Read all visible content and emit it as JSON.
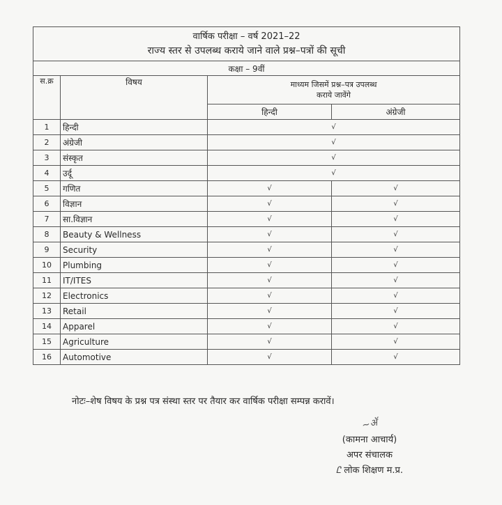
{
  "document": {
    "title_line1": "वार्षिक परीक्षा – वर्ष 2021–22",
    "title_line2": "राज्य स्तर से उपलब्ध कराये जाने वाले प्रश्न–पत्रों की सूची",
    "class_label": "कक्षा – 9वीं",
    "headers": {
      "sno": "स.क्र",
      "subject": "विषय",
      "medium": "माध्यम जिसमें प्रश्न–पत्र उपलब्ध कराये जावेंगे",
      "hindi": "हिन्दी",
      "english": "अंग्रेजी"
    },
    "tick": "√",
    "rows": [
      {
        "sno": "1",
        "subject": "हिन्दी",
        "merged": true
      },
      {
        "sno": "2",
        "subject": "अंग्रेजी",
        "merged": true
      },
      {
        "sno": "3",
        "subject": "संस्कृत",
        "merged": true
      },
      {
        "sno": "4",
        "subject": "उर्दू",
        "merged": true
      },
      {
        "sno": "5",
        "subject": "गणित",
        "merged": false
      },
      {
        "sno": "6",
        "subject": "विज्ञान",
        "merged": false
      },
      {
        "sno": "7",
        "subject": "सा.विज्ञान",
        "merged": false
      },
      {
        "sno": "8",
        "subject": "Beauty & Wellness",
        "merged": false
      },
      {
        "sno": "9",
        "subject": "Security",
        "merged": false
      },
      {
        "sno": "10",
        "subject": "Plumbing",
        "merged": false
      },
      {
        "sno": "11",
        "subject": "IT/ITES",
        "merged": false
      },
      {
        "sno": "12",
        "subject": "Electronics",
        "merged": false
      },
      {
        "sno": "13",
        "subject": "Retail",
        "merged": false
      },
      {
        "sno": "14",
        "subject": "Apparel",
        "merged": false
      },
      {
        "sno": "15",
        "subject": "Agriculture",
        "merged": false
      },
      {
        "sno": "16",
        "subject": "Automotive",
        "merged": false
      }
    ],
    "note": "नोटः–शेष विषय के प्रश्न पत्र संस्था स्तर पर तैयार कर वार्षिक परीक्षा सम्पन्न करावें।",
    "signature": {
      "name": "(कामना आचार्य)",
      "designation": "अपर संचालक",
      "office": "लोक शिक्षण म.प्र.",
      "signature_mark": "कामना",
      "for_mark": "fr"
    }
  }
}
